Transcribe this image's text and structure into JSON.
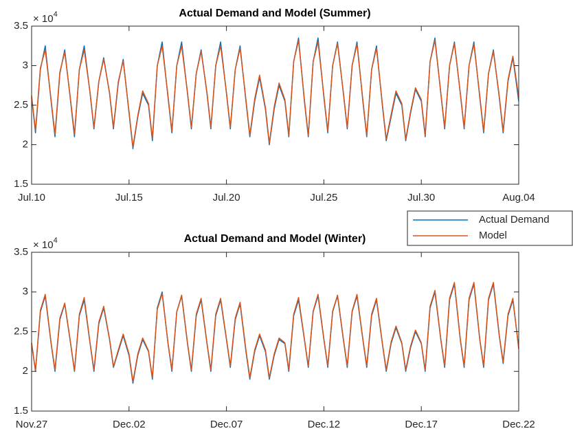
{
  "chart_data": [
    {
      "type": "line",
      "title": "Actual Demand and Model (Summer)",
      "y_multiplier": "× 10",
      "y_exponent": "4",
      "x": [
        0,
        0.2,
        0.45,
        0.7,
        1,
        1.2,
        1.45,
        1.7,
        2,
        2.2,
        2.45,
        2.7,
        3,
        3.2,
        3.45,
        3.7,
        4,
        4.2,
        4.45,
        4.7,
        5,
        5.2,
        5.45,
        5.7,
        6,
        6.2,
        6.45,
        6.7,
        7,
        7.2,
        7.45,
        7.7,
        8,
        8.2,
        8.45,
        8.7,
        9,
        9.2,
        9.45,
        9.7,
        10,
        10.2,
        10.45,
        10.7,
        11,
        11.2,
        11.45,
        11.7,
        12,
        12.2,
        12.45,
        12.7,
        13,
        13.2,
        13.45,
        13.7,
        14,
        14.2,
        14.45,
        14.7,
        15,
        15.2,
        15.45,
        15.7,
        16,
        16.2,
        16.45,
        16.7,
        17,
        17.2,
        17.45,
        17.7,
        18,
        18.2,
        18.45,
        18.7,
        19,
        19.2,
        19.45,
        19.7,
        20,
        20.2,
        20.45,
        20.7,
        21,
        21.2,
        21.45,
        21.7,
        22,
        22.2,
        22.45,
        22.7,
        23,
        23.2,
        23.45,
        23.7,
        24,
        24.2,
        24.45,
        24.7,
        25
      ],
      "xlim": [
        0,
        25
      ],
      "xticks": [
        {
          "value": 0,
          "label": "Jul.10"
        },
        {
          "value": 5,
          "label": "Jul.15"
        },
        {
          "value": 10,
          "label": "Jul.20"
        },
        {
          "value": 15,
          "label": "Jul.25"
        },
        {
          "value": 20,
          "label": "Jul.30"
        },
        {
          "value": 25,
          "label": "Aug.04"
        }
      ],
      "ylim": [
        1.5,
        3.5
      ],
      "yticks": [
        1.5,
        2,
        2.5,
        3,
        3.5
      ],
      "legend": "outside-right",
      "series": [
        {
          "name": "Actual Demand",
          "color": "#0072bd",
          "values": [
            2.6,
            2.15,
            2.95,
            3.25,
            2.55,
            2.1,
            2.9,
            3.2,
            2.55,
            2.1,
            2.95,
            3.25,
            2.65,
            2.2,
            2.8,
            3.1,
            2.65,
            2.2,
            2.78,
            3.08,
            2.4,
            1.95,
            2.35,
            2.65,
            2.5,
            2.05,
            3.0,
            3.3,
            2.6,
            2.15,
            3.0,
            3.3,
            2.65,
            2.2,
            2.9,
            3.2,
            2.65,
            2.2,
            3.0,
            3.3,
            2.65,
            2.2,
            2.95,
            3.25,
            2.55,
            2.1,
            2.55,
            2.85,
            2.45,
            2.0,
            2.45,
            2.75,
            2.55,
            2.1,
            3.05,
            3.35,
            2.55,
            2.1,
            3.05,
            3.35,
            2.6,
            2.15,
            3.0,
            3.3,
            2.65,
            2.2,
            3.0,
            3.3,
            2.55,
            2.1,
            2.95,
            3.25,
            2.5,
            2.05,
            2.35,
            2.65,
            2.5,
            2.05,
            2.4,
            2.7,
            2.55,
            2.1,
            3.05,
            3.35,
            2.65,
            2.2,
            3.0,
            3.3,
            2.65,
            2.2,
            3.0,
            3.3,
            2.6,
            2.15,
            2.9,
            3.2,
            2.6,
            2.15,
            2.8,
            3.1,
            2.55
          ]
        },
        {
          "name": "Model",
          "color": "#d95319",
          "values": [
            2.62,
            2.18,
            2.97,
            3.2,
            2.57,
            2.13,
            2.92,
            3.17,
            2.57,
            2.13,
            2.95,
            3.2,
            2.66,
            2.22,
            2.8,
            3.08,
            2.66,
            2.22,
            2.8,
            3.06,
            2.42,
            1.97,
            2.37,
            2.68,
            2.52,
            2.08,
            3.0,
            3.25,
            2.62,
            2.17,
            3.0,
            3.25,
            2.66,
            2.22,
            2.9,
            3.18,
            2.66,
            2.22,
            3.0,
            3.25,
            2.66,
            2.22,
            2.95,
            3.22,
            2.57,
            2.12,
            2.58,
            2.88,
            2.47,
            2.02,
            2.48,
            2.78,
            2.57,
            2.12,
            3.05,
            3.32,
            2.57,
            2.12,
            3.05,
            3.3,
            2.62,
            2.17,
            3.0,
            3.28,
            2.66,
            2.22,
            3.0,
            3.27,
            2.57,
            2.12,
            2.95,
            3.22,
            2.52,
            2.07,
            2.38,
            2.68,
            2.52,
            2.07,
            2.42,
            2.72,
            2.57,
            2.12,
            3.05,
            3.32,
            2.66,
            2.22,
            3.0,
            3.28,
            2.66,
            2.22,
            3.0,
            3.27,
            2.62,
            2.17,
            2.9,
            3.18,
            2.62,
            2.17,
            2.82,
            3.12,
            2.6
          ]
        }
      ]
    },
    {
      "type": "line",
      "title": "Actual Demand and Model (Winter)",
      "y_multiplier": "× 10",
      "y_exponent": "4",
      "x": [
        0,
        0.2,
        0.45,
        0.7,
        1,
        1.2,
        1.45,
        1.7,
        2,
        2.2,
        2.45,
        2.7,
        3,
        3.2,
        3.45,
        3.7,
        4,
        4.2,
        4.45,
        4.7,
        5,
        5.2,
        5.45,
        5.7,
        6,
        6.2,
        6.45,
        6.7,
        7,
        7.2,
        7.45,
        7.7,
        8,
        8.2,
        8.45,
        8.7,
        9,
        9.2,
        9.45,
        9.7,
        10,
        10.2,
        10.45,
        10.7,
        11,
        11.2,
        11.45,
        11.7,
        12,
        12.2,
        12.45,
        12.7,
        13,
        13.2,
        13.45,
        13.7,
        14,
        14.2,
        14.45,
        14.7,
        15,
        15.2,
        15.45,
        15.7,
        16,
        16.2,
        16.45,
        16.7,
        17,
        17.2,
        17.45,
        17.7,
        18,
        18.2,
        18.45,
        18.7,
        19,
        19.2,
        19.45,
        19.7,
        20,
        20.2,
        20.45,
        20.7,
        21,
        21.2,
        21.45,
        21.7,
        22,
        22.2,
        22.45,
        22.7,
        23,
        23.2,
        23.45,
        23.7,
        24,
        24.2,
        24.45,
        24.7,
        25
      ],
      "xlim": [
        0,
        25
      ],
      "xticks": [
        {
          "value": 0,
          "label": "Nov.27"
        },
        {
          "value": 5,
          "label": "Dec.02"
        },
        {
          "value": 10,
          "label": "Dec.07"
        },
        {
          "value": 15,
          "label": "Dec.12"
        },
        {
          "value": 20,
          "label": "Dec.17"
        },
        {
          "value": 25,
          "label": "Dec.22"
        }
      ],
      "ylim": [
        1.5,
        3.5
      ],
      "yticks": [
        1.5,
        2,
        2.5,
        3,
        3.5
      ],
      "series": [
        {
          "color": "#0072bd",
          "values": [
            2.35,
            2.0,
            2.75,
            2.95,
            2.35,
            2.0,
            2.65,
            2.85,
            2.35,
            2.0,
            2.7,
            2.9,
            2.35,
            2.0,
            2.6,
            2.8,
            2.4,
            2.05,
            2.25,
            2.45,
            2.2,
            1.85,
            2.2,
            2.4,
            2.25,
            1.9,
            2.8,
            3.0,
            2.35,
            2.0,
            2.75,
            2.95,
            2.35,
            2.0,
            2.7,
            2.9,
            2.35,
            2.0,
            2.7,
            2.9,
            2.4,
            2.05,
            2.65,
            2.85,
            2.25,
            1.9,
            2.25,
            2.45,
            2.25,
            1.9,
            2.2,
            2.4,
            2.35,
            2.0,
            2.7,
            2.9,
            2.4,
            2.05,
            2.75,
            2.95,
            2.4,
            2.05,
            2.75,
            2.95,
            2.4,
            2.05,
            2.75,
            2.95,
            2.4,
            2.05,
            2.7,
            2.9,
            2.35,
            2.0,
            2.35,
            2.55,
            2.35,
            2.0,
            2.3,
            2.5,
            2.35,
            2.0,
            2.8,
            3.0,
            2.4,
            2.05,
            2.9,
            3.1,
            2.4,
            2.05,
            2.9,
            3.1,
            2.4,
            2.05,
            2.9,
            3.1,
            2.45,
            2.1,
            2.7,
            2.9,
            2.3
          ]
        },
        {
          "color": "#d95319",
          "values": [
            2.36,
            2.01,
            2.77,
            2.97,
            2.36,
            2.02,
            2.67,
            2.86,
            2.36,
            2.01,
            2.72,
            2.93,
            2.36,
            2.02,
            2.62,
            2.82,
            2.41,
            2.06,
            2.27,
            2.47,
            2.22,
            1.87,
            2.22,
            2.42,
            2.26,
            1.92,
            2.78,
            2.98,
            2.36,
            2.02,
            2.75,
            2.96,
            2.36,
            2.02,
            2.72,
            2.92,
            2.36,
            2.02,
            2.72,
            2.92,
            2.41,
            2.07,
            2.67,
            2.87,
            2.27,
            1.92,
            2.27,
            2.47,
            2.27,
            1.92,
            2.22,
            2.42,
            2.36,
            2.02,
            2.72,
            2.93,
            2.41,
            2.07,
            2.76,
            2.97,
            2.41,
            2.07,
            2.76,
            2.96,
            2.41,
            2.07,
            2.76,
            2.97,
            2.41,
            2.07,
            2.72,
            2.92,
            2.36,
            2.02,
            2.37,
            2.57,
            2.36,
            2.02,
            2.32,
            2.52,
            2.36,
            2.02,
            2.82,
            3.02,
            2.41,
            2.07,
            2.92,
            3.12,
            2.41,
            2.07,
            2.92,
            3.12,
            2.41,
            2.07,
            2.92,
            3.12,
            2.46,
            2.12,
            2.72,
            2.92,
            2.28
          ]
        }
      ]
    }
  ]
}
